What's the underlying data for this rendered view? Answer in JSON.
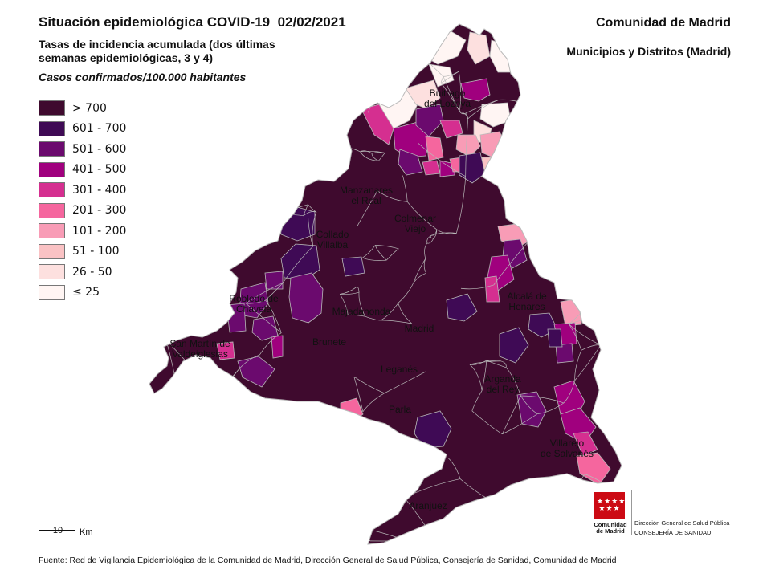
{
  "header": {
    "title_main": "Situación epidemiológica ",
    "title_bold": "COVID-19",
    "title_date": "  02/02/2021",
    "subtitle": "Tasas de incidencia acumulada (dos últimas semanas epidemiológicas, 3 y 4)",
    "cases_label": "Casos confirmados/100.000 habitantes",
    "region": "Comunidad de Madrid",
    "region_sub": "Municipios y Distritos (Madrid)"
  },
  "legend": {
    "items": [
      {
        "label": "> 700",
        "color": "#3f0a2e"
      },
      {
        "label": "601 - 700",
        "color": "#3f0a55"
      },
      {
        "label": "501 - 600",
        "color": "#6b0a6e"
      },
      {
        "label": "401 - 500",
        "color": "#a0007e"
      },
      {
        "label": "301 - 400",
        "color": "#d52f90"
      },
      {
        "label": "201 - 300",
        "color": "#f5669e"
      },
      {
        "label": "101 - 200",
        "color": "#f89cb6"
      },
      {
        "label": "51 - 100",
        "color": "#fac2c4"
      },
      {
        "label": "26 - 50",
        "color": "#fde0df"
      },
      {
        "label": "≤ 25",
        "color": "#fff5f3"
      }
    ]
  },
  "map": {
    "border_color": "#b9b9b9",
    "labels": [
      "Buitrago del Lozoya",
      "Manzanares el Real",
      "Colmenar Viejo",
      "Collado Villalba",
      "Alcalá de Henares",
      "Majadahonda",
      "Madrid",
      "Navalcarnero",
      "Brunete",
      "Leganés",
      "Arganda del Rey",
      "Parla",
      "San Martín de Valdeiglesias",
      "Villarejo de Salvanés",
      "Aranjuez",
      "Robledo de Chavela"
    ]
  },
  "scale": {
    "value": "10",
    "unit": "Km"
  },
  "logo": {
    "name_line1": "Comunidad",
    "name_line2": "de Madrid",
    "dept_line1": "Dirección General de Salud Pública",
    "dept_line2": "CONSEJERÍA DE SANIDAD"
  },
  "footer": {
    "source": "Fuente: Red de Vigilancia Epidemiológica de la Comunidad de Madrid, Dirección General de Salud Pública, Consejería de Sanidad, Comunidad de Madrid"
  }
}
